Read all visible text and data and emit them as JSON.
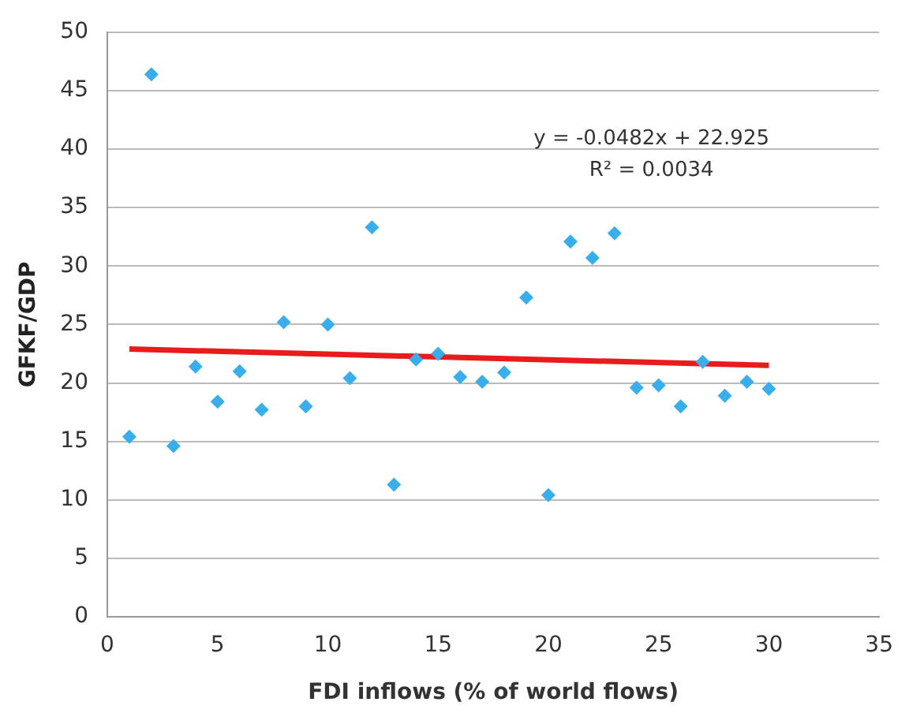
{
  "chart_data": {
    "type": "scatter",
    "xlabel": "FDI inflows (% of world flows)",
    "ylabel": "GFKF/GDP",
    "xlim": [
      0,
      35
    ],
    "xticks": [
      0,
      5,
      10,
      15,
      20,
      25,
      30,
      35
    ],
    "ylim": [
      0,
      50
    ],
    "yticks": [
      0,
      5,
      10,
      15,
      20,
      25,
      30,
      35,
      40,
      45,
      50
    ],
    "grid": "y",
    "series": [
      {
        "color": "#3aaeea",
        "marker": "diamond",
        "x": [
          1,
          2,
          3,
          4,
          5,
          6,
          7,
          8,
          9,
          10,
          11,
          12,
          13,
          14,
          15,
          16,
          17,
          18,
          19,
          20,
          21,
          22,
          23,
          24,
          25,
          26,
          27,
          28,
          29,
          30
        ],
        "values": [
          15.4,
          46.4,
          14.6,
          21.4,
          18.4,
          21.0,
          17.7,
          25.2,
          18.0,
          25.0,
          20.4,
          33.3,
          11.3,
          22.0,
          22.5,
          20.5,
          20.1,
          20.9,
          27.3,
          10.4,
          32.1,
          30.7,
          32.8,
          19.6,
          19.8,
          18.0,
          21.8,
          18.9,
          20.1,
          19.5
        ]
      },
      {
        "type": "line",
        "color": "#e81c1c",
        "x": [
          1,
          30
        ],
        "values": [
          22.9,
          21.5
        ]
      }
    ],
    "annotations": [
      "y = -0.0482x + 22.925",
      "R² = 0.0034"
    ]
  }
}
